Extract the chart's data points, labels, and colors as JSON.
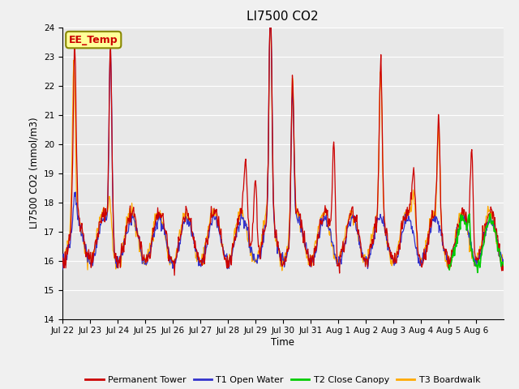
{
  "title": "LI7500 CO2",
  "ylabel": "LI7500 CO2 (mmol/m3)",
  "xlabel": "Time",
  "ylim": [
    14.0,
    24.0
  ],
  "yticks": [
    14.0,
    15.0,
    16.0,
    17.0,
    18.0,
    19.0,
    20.0,
    21.0,
    22.0,
    23.0,
    24.0
  ],
  "xtick_labels": [
    "Jul 22",
    "Jul 23",
    "Jul 24",
    "Jul 25",
    "Jul 26",
    "Jul 27",
    "Jul 28",
    "Jul 29",
    "Jul 30",
    "Jul 31",
    "Aug 1",
    "Aug 2",
    "Aug 3",
    "Aug 4",
    "Aug 5",
    "Aug 6"
  ],
  "colors": {
    "permanent_tower": "#cc0000",
    "t1_open_water": "#3333cc",
    "t2_close_canopy": "#00cc00",
    "t3_boardwalk": "#ffaa00"
  },
  "legend_labels": [
    "Permanent Tower",
    "T1 Open Water",
    "T2 Close Canopy",
    "T3 Boardwalk"
  ],
  "annotation_text": "EE_Temp",
  "annotation_color": "#cc0000",
  "annotation_bg": "#ffff99",
  "annotation_border": "#888800",
  "fig_bg": "#f0f0f0",
  "plot_bg": "#e8e8e8",
  "grid_color": "white",
  "n_days": 16,
  "n_per_day": 48
}
